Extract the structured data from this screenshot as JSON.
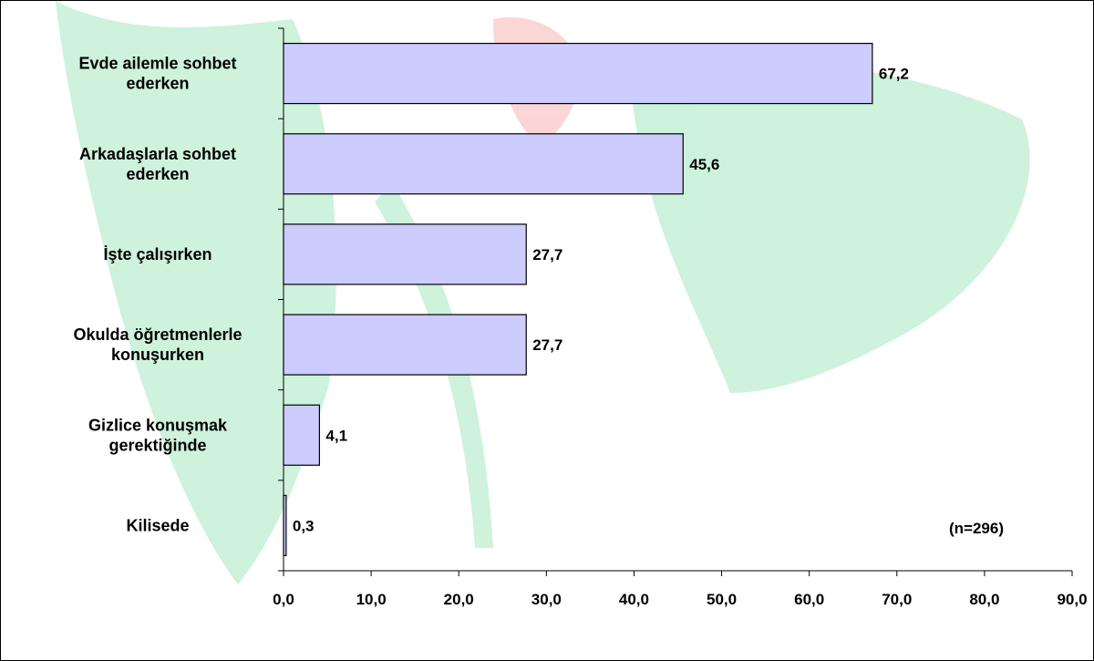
{
  "colors": {
    "bar_fill": "#ccccff",
    "bar_stroke": "#000000",
    "axis": "#000000",
    "watermark_green": "#22c55e",
    "watermark_red": "#ef4444",
    "background": "#ffffff"
  },
  "chart_data": {
    "type": "bar",
    "orientation": "horizontal",
    "categories": [
      [
        "Evde ailemle sohbet",
        "ederken"
      ],
      [
        "Arkadaşlarla sohbet",
        "ederken"
      ],
      [
        "İşte çalışırken"
      ],
      [
        "Okulda öğretmenlerle",
        "konuşurken"
      ],
      [
        "Gizlice konuşmak",
        "gerektiğinde"
      ],
      [
        "Kilisede"
      ]
    ],
    "values": [
      67.2,
      45.6,
      27.7,
      27.7,
      4.1,
      0.3
    ],
    "value_labels": [
      "67,2",
      "45,6",
      "27,7",
      "27,7",
      "4,1",
      "0,3"
    ],
    "xlim": [
      0,
      90
    ],
    "x_ticks": [
      0,
      10,
      20,
      30,
      40,
      50,
      60,
      70,
      80,
      90
    ],
    "x_tick_labels": [
      "0,0",
      "10,0",
      "20,0",
      "30,0",
      "40,0",
      "50,0",
      "60,0",
      "70,0",
      "80,0",
      "90,0"
    ],
    "annotation": "(n=296)",
    "title": "",
    "xlabel": "",
    "ylabel": "",
    "grid": false,
    "legend": "none"
  }
}
